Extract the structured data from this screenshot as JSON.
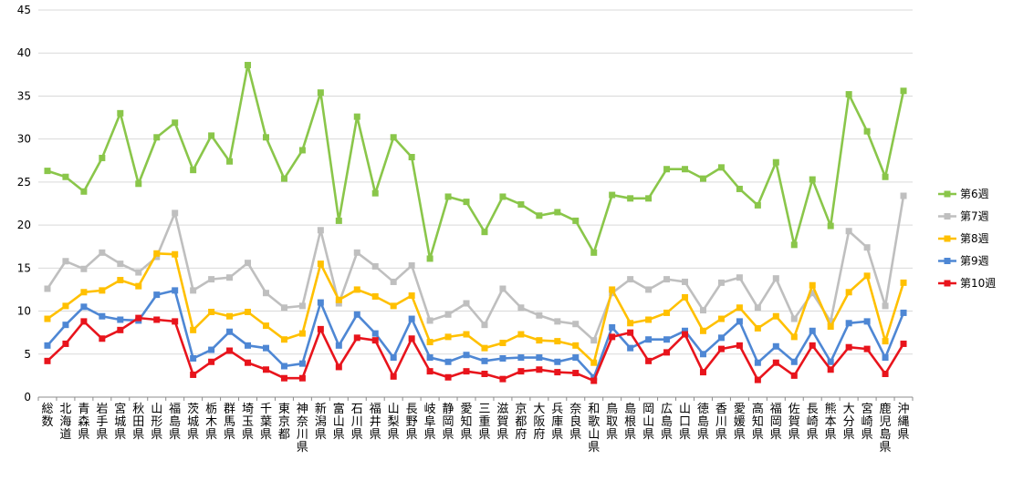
{
  "chart_data": {
    "type": "line",
    "title": "",
    "xlabel": "",
    "ylabel": "",
    "ylim": [
      0,
      45
    ],
    "yticks": [
      0,
      5,
      10,
      15,
      20,
      25,
      30,
      35,
      40,
      45
    ],
    "grid": "horizontal",
    "legend_position": "right",
    "categories": [
      "総数",
      "北海道",
      "青森県",
      "岩手県",
      "宮城県",
      "秋田県",
      "山形県",
      "福島県",
      "茨城県",
      "栃木県",
      "群馬県",
      "埼玉県",
      "千葉県",
      "東京都",
      "神奈川県",
      "新潟県",
      "富山県",
      "石川県",
      "福井県",
      "山梨県",
      "長野県",
      "岐阜県",
      "静岡県",
      "愛知県",
      "三重県",
      "滋賀県",
      "京都府",
      "大阪府",
      "兵庫県",
      "奈良県",
      "和歌山県",
      "鳥取県",
      "島根県",
      "岡山県",
      "広島県",
      "山口県",
      "徳島県",
      "香川県",
      "愛媛県",
      "高知県",
      "福岡県",
      "佐賀県",
      "長崎県",
      "熊本県",
      "大分県",
      "宮崎県",
      "鹿児島県",
      "沖縄県"
    ],
    "series": [
      {
        "name": "第6週",
        "color": "#8ac64a",
        "values": [
          26.3,
          25.6,
          23.9,
          27.8,
          33.0,
          24.8,
          30.2,
          31.9,
          26.4,
          30.4,
          27.4,
          38.6,
          30.2,
          25.4,
          28.7,
          35.4,
          20.5,
          32.6,
          23.7,
          30.2,
          27.9,
          16.1,
          23.3,
          22.7,
          19.2,
          23.3,
          22.4,
          21.1,
          21.5,
          20.5,
          16.8,
          23.5,
          23.1,
          23.1,
          26.5,
          26.5,
          25.4,
          26.7,
          24.2,
          22.3,
          27.3,
          17.7,
          25.3,
          19.9,
          35.2,
          30.9,
          25.6,
          35.6
        ]
      },
      {
        "name": "第7週",
        "color": "#bfbfbf",
        "values": [
          12.6,
          15.8,
          14.9,
          16.8,
          15.5,
          14.5,
          16.3,
          21.4,
          12.4,
          13.7,
          13.9,
          15.6,
          12.1,
          10.4,
          10.6,
          19.4,
          10.9,
          16.8,
          15.2,
          13.4,
          15.3,
          8.9,
          9.6,
          10.9,
          8.4,
          12.6,
          10.4,
          9.5,
          8.8,
          8.5,
          6.6,
          12.1,
          13.7,
          12.5,
          13.7,
          13.4,
          10.1,
          13.3,
          13.9,
          10.4,
          13.8,
          9.1,
          12.1,
          8.8,
          19.3,
          17.4,
          10.6,
          23.4
        ]
      },
      {
        "name": "第8週",
        "color": "#ffc000",
        "values": [
          9.1,
          10.6,
          12.2,
          12.4,
          13.6,
          12.9,
          16.7,
          16.6,
          7.8,
          9.9,
          9.4,
          9.9,
          8.3,
          6.7,
          7.4,
          15.5,
          11.3,
          12.5,
          11.7,
          10.6,
          11.8,
          6.4,
          7.0,
          7.3,
          5.7,
          6.3,
          7.3,
          6.6,
          6.5,
          6.0,
          4.0,
          12.5,
          8.6,
          9.0,
          9.8,
          11.6,
          7.7,
          9.1,
          10.4,
          8.0,
          9.4,
          7.0,
          13.0,
          8.2,
          12.2,
          14.1,
          6.5,
          13.3
        ]
      },
      {
        "name": "第9週",
        "color": "#4e87d4",
        "values": [
          6.0,
          8.4,
          10.5,
          9.4,
          9.0,
          8.9,
          11.9,
          12.4,
          4.5,
          5.5,
          7.6,
          6.0,
          5.7,
          3.6,
          3.9,
          11.0,
          6.0,
          9.6,
          7.4,
          4.6,
          9.1,
          4.6,
          4.1,
          4.9,
          4.2,
          4.5,
          4.6,
          4.6,
          4.1,
          4.6,
          2.3,
          8.1,
          5.7,
          6.7,
          6.7,
          7.7,
          5.0,
          6.9,
          8.8,
          4.0,
          5.9,
          4.1,
          7.7,
          4.1,
          8.6,
          8.8,
          4.6,
          9.8
        ]
      },
      {
        "name": "第10週",
        "color": "#e8141c",
        "values": [
          4.2,
          6.2,
          8.8,
          6.8,
          7.8,
          9.2,
          9.0,
          8.8,
          2.6,
          4.1,
          5.4,
          4.0,
          3.2,
          2.2,
          2.2,
          7.9,
          3.5,
          6.9,
          6.6,
          2.4,
          6.8,
          3.0,
          2.3,
          3.0,
          2.7,
          2.1,
          3.0,
          3.2,
          2.9,
          2.8,
          1.9,
          7.0,
          7.5,
          4.2,
          5.2,
          7.3,
          2.9,
          5.6,
          6.0,
          2.0,
          4.0,
          2.5,
          6.0,
          3.2,
          5.8,
          5.6,
          2.7,
          6.2
        ]
      }
    ]
  }
}
